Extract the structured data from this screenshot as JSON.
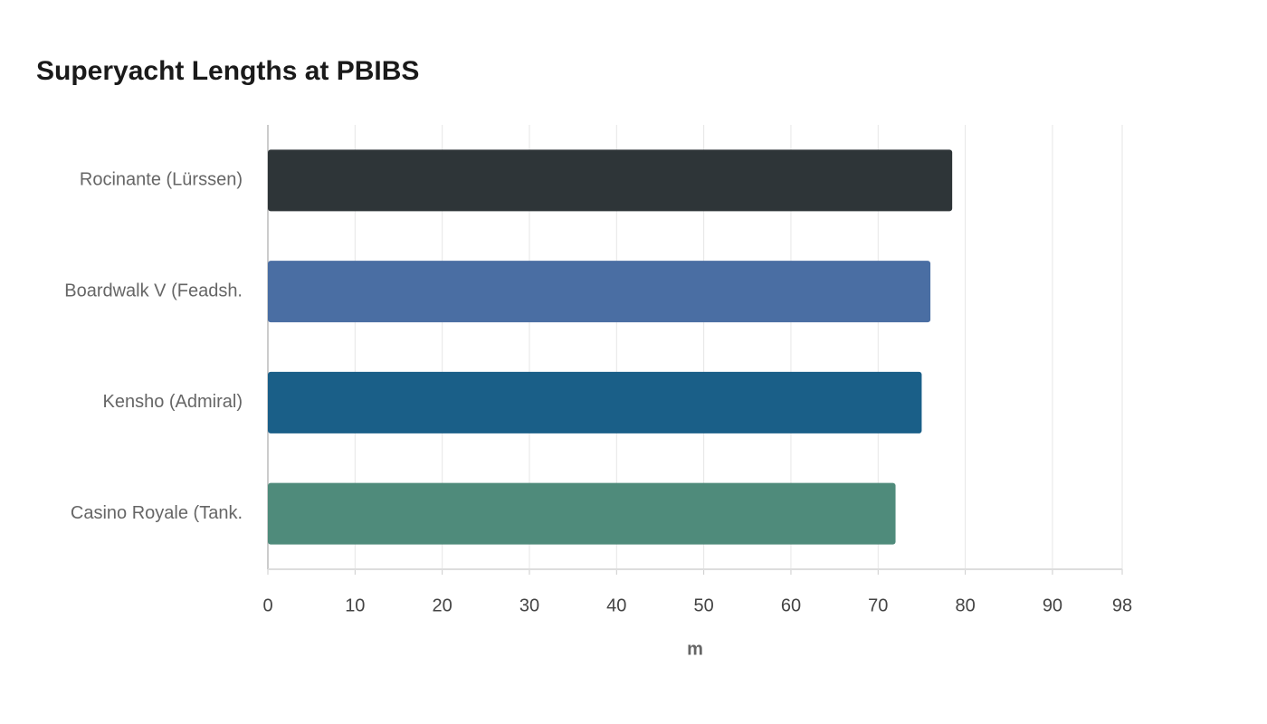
{
  "chart_data": {
    "type": "hbar",
    "title": "Superyacht Lengths at PBIBS",
    "x_label": "m",
    "categories": [
      "Rocinante (Lürssen)",
      "Boardwalk V (Feadsh.",
      "Kensho (Admiral)",
      "Casino Royale (Tank."
    ],
    "values": [
      78.5,
      76,
      75,
      72
    ],
    "colors": [
      "#2e3538",
      "#4a6ea3",
      "#1a5f88",
      "#4f8b7b"
    ],
    "xlim": [
      0,
      98
    ],
    "xticks": [
      0,
      10,
      20,
      30,
      40,
      50,
      60,
      70,
      80,
      90,
      98
    ],
    "grid": true
  }
}
